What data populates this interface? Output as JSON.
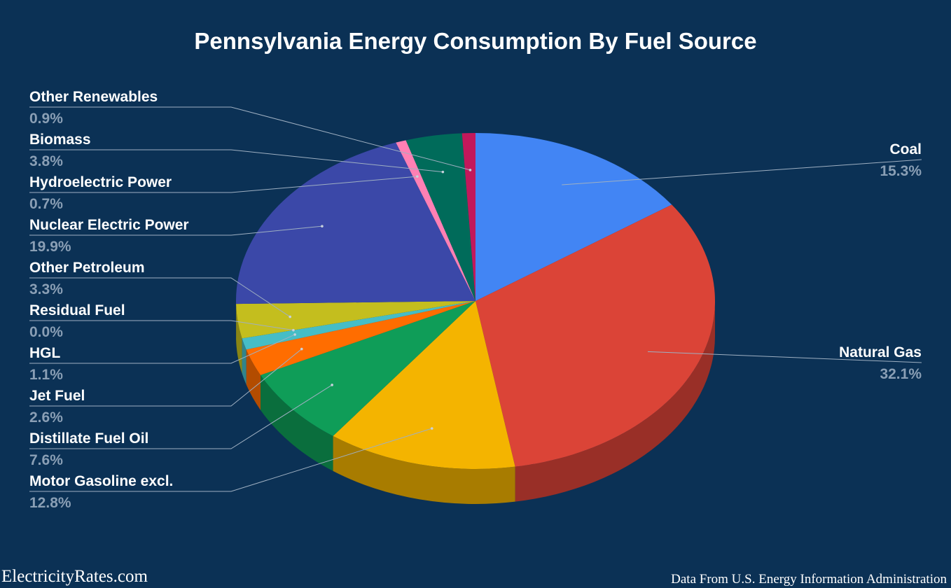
{
  "chart_data": {
    "type": "pie",
    "title": "Pennsylvania Energy Consumption By Fuel Source",
    "unit": "%",
    "slices": [
      {
        "label": "Coal",
        "value": 15.3,
        "display": "15.3%",
        "color": "#4285f4",
        "shade": "#2f5fae"
      },
      {
        "label": "Natural Gas",
        "value": 32.1,
        "display": "32.1%",
        "color": "#db4437",
        "shade": "#992f27"
      },
      {
        "label": "Motor Gasoline excl.",
        "value": 12.8,
        "display": "12.8%",
        "color": "#f4b400",
        "shade": "#a87c00"
      },
      {
        "label": "Distillate Fuel Oil",
        "value": 7.6,
        "display": "7.6%",
        "color": "#0f9d58",
        "shade": "#0a6e3d"
      },
      {
        "label": "Jet Fuel",
        "value": 2.6,
        "display": "2.6%",
        "color": "#ff6d00",
        "shade": "#b34c00"
      },
      {
        "label": "HGL",
        "value": 1.1,
        "display": "1.1%",
        "color": "#46bdc6",
        "shade": "#31848b"
      },
      {
        "label": "Residual Fuel",
        "value": 0.0,
        "display": "0.0%",
        "color": "#7baaf7",
        "shade": "#5677ad"
      },
      {
        "label": "Other Petroleum",
        "value": 3.3,
        "display": "3.3%",
        "color": "#c4be1e",
        "shade": "#898515"
      },
      {
        "label": "Nuclear Electric Power",
        "value": 19.9,
        "display": "19.9%",
        "color": "#3b48a8",
        "shade": "#293276"
      },
      {
        "label": "Hydroelectric Power",
        "value": 0.7,
        "display": "0.7%",
        "color": "#ff80b4",
        "shade": "#b35a7e"
      },
      {
        "label": "Biomass",
        "value": 3.8,
        "display": "3.8%",
        "color": "#006b5a",
        "shade": "#004b3f"
      },
      {
        "label": "Other Renewables",
        "value": 0.9,
        "display": "0.9%",
        "color": "#c2185b",
        "shade": "#881140"
      }
    ],
    "legend": "none",
    "labels_placement": "outside-with-leader-lines"
  },
  "footer": {
    "brand": "ElectricityRates.com",
    "source": "Data From U.S. Energy Information Administration"
  }
}
